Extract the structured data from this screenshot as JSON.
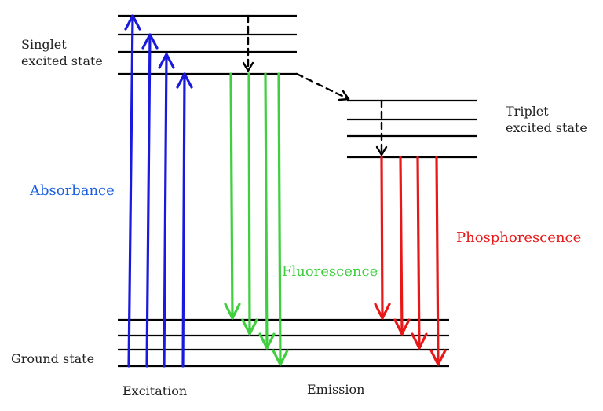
{
  "labels": {
    "singlet_line1": "Singlet",
    "singlet_line2": "excited state",
    "triplet_line1": "Triplet",
    "triplet_line2": "excited state",
    "absorbance": "Absorbance",
    "fluorescence": "Fluorescence",
    "phosphorescence": "Phosphorescence",
    "ground_state": "Ground state",
    "excitation": "Excitation",
    "emission": "Emission"
  },
  "colors": {
    "absorbance": "#1a1adf",
    "absorbance_label": "#1a5fe0",
    "fluorescence": "#3fcf3f",
    "phosphorescence": "#e81818",
    "levels": "#000000",
    "nonradiative": "#000000"
  },
  "icons": {
    "arrowhead": "open-chevron-arrowhead"
  }
}
